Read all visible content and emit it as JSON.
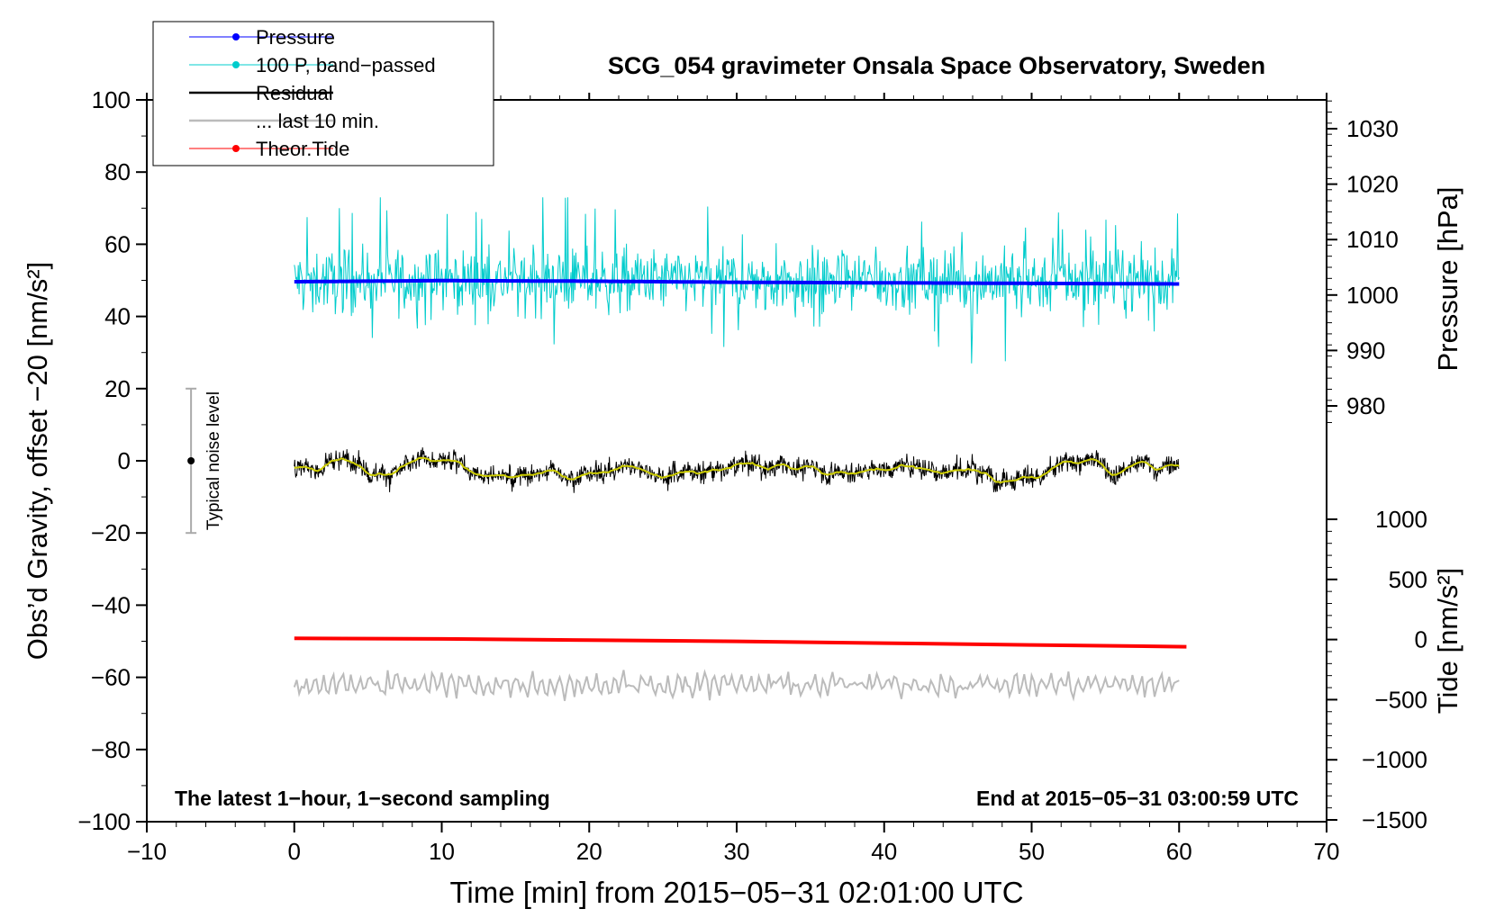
{
  "chart_data": {
    "type": "line",
    "title": "SCG_054 gravimeter Onsala Space Observatory, Sweden",
    "xlabel": "Time [min] from 2015−05−31 02:01:00 UTC",
    "ylabel_left": "Obs’d Gravity, offset −20 [nm/s²]",
    "ylabel_right_pressure": "Pressure [hPa]",
    "ylabel_right_tide": "Tide [nm/s²]",
    "xlim": [
      -10,
      70
    ],
    "ylim": [
      -100,
      100
    ],
    "x_ticks": [
      {
        "v": -10,
        "label": "−10"
      },
      {
        "v": 0,
        "label": "0"
      },
      {
        "v": 10,
        "label": "10"
      },
      {
        "v": 20,
        "label": "20"
      },
      {
        "v": 30,
        "label": "30"
      },
      {
        "v": 40,
        "label": "40"
      },
      {
        "v": 50,
        "label": "50"
      },
      {
        "v": 60,
        "label": "60"
      },
      {
        "v": 70,
        "label": "70"
      }
    ],
    "y_ticks": [
      {
        "v": 100,
        "label": "100"
      },
      {
        "v": 80,
        "label": "80"
      },
      {
        "v": 60,
        "label": "60"
      },
      {
        "v": 40,
        "label": "40"
      },
      {
        "v": 20,
        "label": "20"
      },
      {
        "v": 0,
        "label": "0"
      },
      {
        "v": -20,
        "label": "−20"
      },
      {
        "v": -40,
        "label": "−40"
      },
      {
        "v": -60,
        "label": "−60"
      },
      {
        "v": -80,
        "label": "−80"
      },
      {
        "v": -100,
        "label": "−100"
      }
    ],
    "pressure_axis": {
      "ticks": [
        {
          "v": 1030,
          "label": "1030"
        },
        {
          "v": 1020,
          "label": "1020"
        },
        {
          "v": 1010,
          "label": "1010"
        },
        {
          "v": 1000,
          "label": "1000"
        },
        {
          "v": 990,
          "label": "990"
        },
        {
          "v": 980,
          "label": "980"
        }
      ]
    },
    "tide_axis": {
      "ticks": [
        {
          "v": 1000,
          "label": "1000"
        },
        {
          "v": 500,
          "label": "500"
        },
        {
          "v": 0,
          "label": "0"
        },
        {
          "v": -500,
          "label": "−500"
        },
        {
          "v": -1000,
          "label": "−1000"
        },
        {
          "v": -1500,
          "label": "−1500"
        }
      ]
    },
    "legend": {
      "position": "top-left",
      "entries": [
        {
          "name": "Pressure",
          "color": "#0000ff",
          "marker": true
        },
        {
          "name": "100 P, band−passed",
          "color": "#00cccc",
          "marker": true
        },
        {
          "name": "Residual",
          "color": "#000000",
          "marker": false
        },
        {
          "name": "... last 10 min.",
          "color": "#bbbbbb",
          "marker": false
        },
        {
          "name": "Theor.Tide",
          "color": "#ff0000",
          "marker": true
        }
      ]
    },
    "series": [
      {
        "name": "Pressure",
        "color": "#0000ff",
        "x_range": [
          0,
          60
        ],
        "values_hpa": [
          1002.4,
          1002.6,
          1002.5,
          1002.3,
          1002.2,
          1002.1,
          1002.0
        ]
      },
      {
        "name": "100 P, band−passed",
        "color": "#00cccc",
        "x_range": [
          0,
          60
        ],
        "center": 50,
        "typical_amplitude": 7,
        "max": 73,
        "min": 27
      },
      {
        "name": "Residual",
        "color": "#000000",
        "x_range": [
          0,
          60
        ],
        "center": -1.5,
        "typical_amplitude": 3
      },
      {
        "name": "Residual smoothed",
        "color": "#cccc00",
        "x_range": [
          0,
          60
        ],
        "center": -1.5
      },
      {
        "name": "... last 10 min.",
        "color": "#bbbbbb",
        "x_range": [
          0,
          60
        ],
        "center": -62,
        "typical_amplitude": 3
      },
      {
        "name": "Theor.Tide",
        "color": "#ff0000",
        "x": [
          0,
          10,
          20,
          30,
          40,
          50,
          60.5
        ],
        "values_nms2": [
          10,
          5,
          -5,
          -15,
          -30,
          -45,
          -60
        ]
      }
    ],
    "noise_bar": {
      "x": -7,
      "center": 0,
      "half_range": 20,
      "label": "Typical noise level"
    },
    "footer_left": "The latest 1−hour, 1−second sampling",
    "footer_right": "End at 2015−05−31 03:00:59 UTC"
  }
}
